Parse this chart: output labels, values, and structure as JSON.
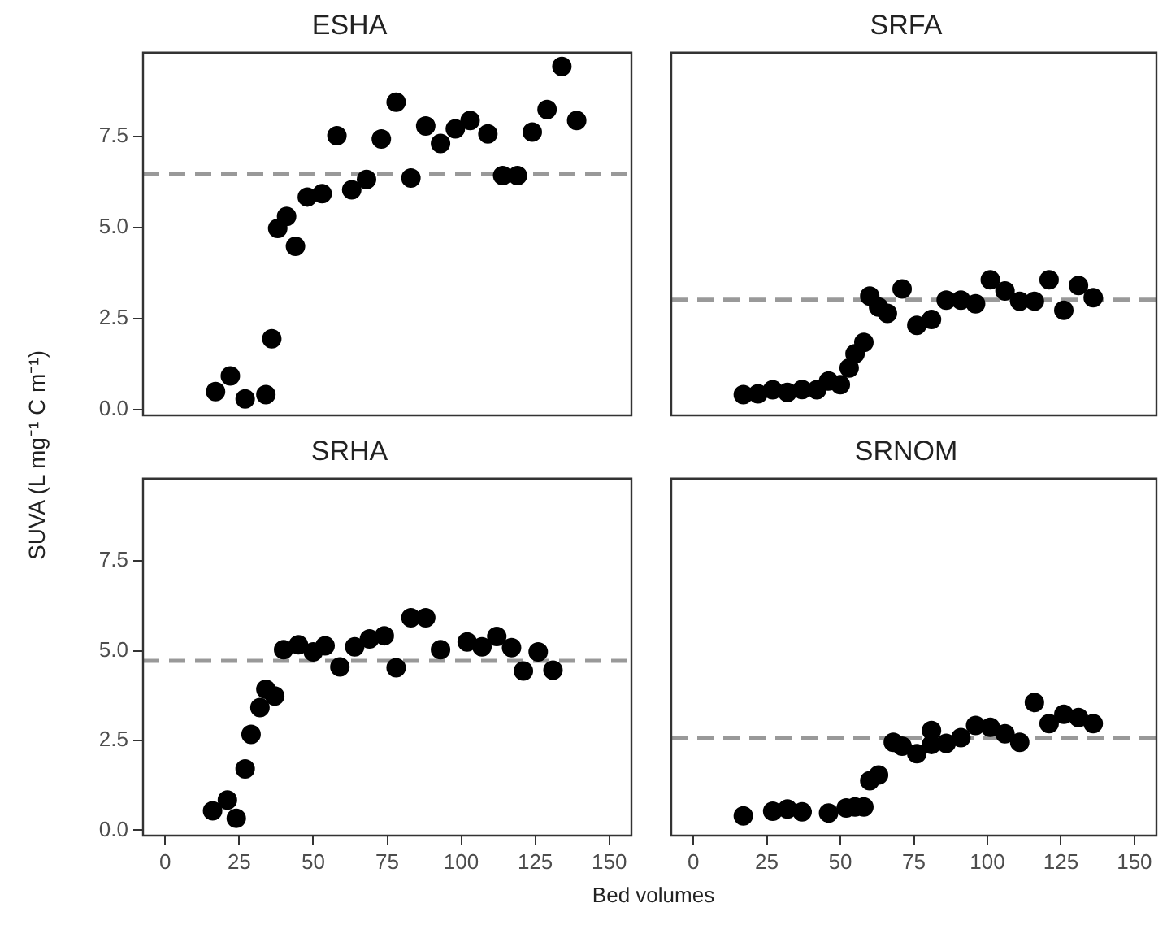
{
  "chart_data": [
    {
      "type": "scatter",
      "title": "ESHA",
      "ylabel": "SUVA  (L mg⁻¹ C m⁻¹)",
      "xlim": [
        -7.5,
        157.5
      ],
      "ylim": [
        -0.15,
        9.8
      ],
      "yticks": [
        {
          "value": 0,
          "label": "0.0"
        },
        {
          "value": 2.5,
          "label": "2.5"
        },
        {
          "value": 5,
          "label": "5.0"
        },
        {
          "value": 7.5,
          "label": "7.5"
        }
      ],
      "tick_labels": "y",
      "grid": false,
      "legend": false,
      "marker": "circle",
      "series": [
        {
          "color": "#000000",
          "x": [
            17,
            22,
            27,
            34,
            36,
            38,
            41,
            44,
            48,
            53,
            58,
            63,
            68,
            73,
            78,
            83,
            88,
            93,
            98,
            103,
            109,
            114,
            119,
            124,
            129,
            134,
            139
          ],
          "values": [
            0.5,
            0.93,
            0.3,
            0.42,
            1.95,
            4.98,
            5.31,
            4.49,
            5.84,
            5.93,
            7.52,
            6.04,
            6.32,
            7.43,
            8.44,
            6.36,
            7.79,
            7.31,
            7.71,
            7.94,
            7.57,
            6.43,
            6.43,
            7.62,
            8.24,
            9.42,
            7.94
          ]
        }
      ],
      "ref_lines": [
        {
          "axis": "y",
          "value": 6.46,
          "color": "#999999",
          "line_style": "dashed"
        }
      ]
    },
    {
      "type": "scatter",
      "title": "SRFA",
      "xlim": [
        -7.5,
        157.5
      ],
      "ylim": [
        -0.15,
        9.8
      ],
      "tick_labels": false,
      "grid": false,
      "legend": false,
      "marker": "circle",
      "series": [
        {
          "color": "#000000",
          "x": [
            17,
            22,
            27,
            32,
            37,
            42,
            46,
            50,
            53,
            55,
            58,
            60,
            63,
            66,
            71,
            76,
            81,
            86,
            91,
            96,
            101,
            106,
            111,
            116,
            121,
            126,
            131,
            136
          ],
          "values": [
            0.42,
            0.44,
            0.55,
            0.48,
            0.56,
            0.55,
            0.79,
            0.69,
            1.15,
            1.54,
            1.85,
            3.12,
            2.82,
            2.65,
            3.32,
            2.32,
            2.48,
            3.01,
            3.01,
            2.91,
            3.57,
            3.26,
            2.98,
            2.98,
            3.57,
            2.73,
            3.41,
            3.08
          ]
        }
      ],
      "ref_lines": [
        {
          "axis": "y",
          "value": 3.02,
          "color": "#999999",
          "line_style": "dashed"
        }
      ]
    },
    {
      "type": "scatter",
      "title": "SRHA",
      "xlabel": "Bed volumes",
      "xlim": [
        -7.5,
        157.5
      ],
      "ylim": [
        -0.15,
        9.8
      ],
      "xticks": [
        0,
        25,
        50,
        75,
        100,
        125,
        150
      ],
      "yticks": [
        {
          "value": 0,
          "label": "0.0"
        },
        {
          "value": 2.5,
          "label": "2.5"
        },
        {
          "value": 5,
          "label": "5.0"
        },
        {
          "value": 7.5,
          "label": "7.5"
        }
      ],
      "grid": false,
      "legend": false,
      "marker": "circle",
      "series": [
        {
          "color": "#000000",
          "x": [
            16,
            21,
            24,
            27,
            29,
            32,
            34,
            37,
            40,
            45,
            50,
            54,
            59,
            64,
            69,
            74,
            78,
            83,
            88,
            93,
            102,
            107,
            112,
            117,
            121,
            126,
            131
          ],
          "values": [
            0.54,
            0.84,
            0.33,
            1.71,
            2.67,
            3.42,
            3.93,
            3.74,
            5.03,
            5.17,
            4.97,
            5.14,
            4.55,
            5.11,
            5.33,
            5.42,
            4.53,
            5.92,
            5.92,
            5.03,
            5.25,
            5.11,
            5.4,
            5.09,
            4.44,
            4.97,
            4.46
          ]
        }
      ],
      "ref_lines": [
        {
          "axis": "y",
          "value": 4.72,
          "color": "#999999",
          "line_style": "dashed"
        }
      ]
    },
    {
      "type": "scatter",
      "title": "SRNOM",
      "xlim": [
        -7.5,
        157.5
      ],
      "ylim": [
        -0.15,
        9.8
      ],
      "xticks": [
        0,
        25,
        50,
        75,
        100,
        125,
        150
      ],
      "tick_labels": "x",
      "grid": false,
      "legend": false,
      "marker": "circle",
      "series": [
        {
          "color": "#000000",
          "x": [
            17,
            27,
            32,
            37,
            46,
            52,
            55,
            58,
            60,
            63,
            68,
            71,
            76,
            81,
            81,
            86,
            91,
            96,
            101,
            106,
            111,
            116,
            121,
            126,
            131,
            136
          ],
          "values": [
            0.4,
            0.53,
            0.59,
            0.51,
            0.48,
            0.62,
            0.65,
            0.65,
            1.38,
            1.54,
            2.45,
            2.34,
            2.13,
            2.78,
            2.39,
            2.42,
            2.58,
            2.92,
            2.87,
            2.69,
            2.45,
            3.56,
            2.97,
            3.23,
            3.14,
            2.97
          ]
        }
      ],
      "ref_lines": [
        {
          "axis": "y",
          "value": 2.56,
          "color": "#999999",
          "line_style": "dashed"
        }
      ]
    }
  ]
}
